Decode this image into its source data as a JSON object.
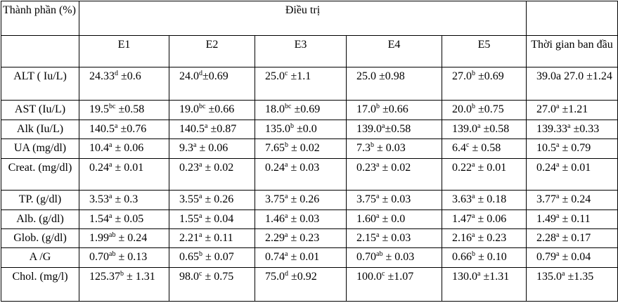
{
  "header": {
    "row_label": "Thành phần (%)",
    "group": "Điều trị",
    "columns": [
      "E1",
      "E2",
      "E3",
      "E4",
      "E5",
      "Thời gian ban đầu"
    ]
  },
  "table": {
    "rows": [
      {
        "label": "ALT ( Iu/L)",
        "cells": [
          {
            "value": "24.33",
            "sup": "d",
            "rest": " ±0.6"
          },
          {
            "value": "24.0",
            "sup": "d",
            "rest": "±0.69"
          },
          {
            "value": "25.0",
            "sup": "c",
            "rest": " ±1.1"
          },
          {
            "value": "25.0 ±0.98"
          },
          {
            "value": "27.0",
            "sup": "b",
            "rest": " ±0.69"
          },
          {
            "value": "39.0a 27.0 ±1.24"
          }
        ]
      },
      {
        "label": "AST (Iu/L)",
        "cells": [
          {
            "value": "19.5",
            "sup": "bc",
            "rest": " ±0.58"
          },
          {
            "value": "19.0",
            "sup": "bc",
            "rest": " ±0.66"
          },
          {
            "value": "18.0",
            "sup": "bc",
            "rest": " ±0.69"
          },
          {
            "value": "17.0",
            "sup": "b",
            "rest": " ±0.66"
          },
          {
            "value": "20.0",
            "sup": "b",
            "rest": " ±0.75"
          },
          {
            "value": "27.0",
            "sup": "a",
            "rest": " ±1.21"
          }
        ]
      },
      {
        "label": "Alk (Iu/L)",
        "cells": [
          {
            "value": "140.5",
            "sup": "a",
            "rest": " ±0.76"
          },
          {
            "value": "140.5",
            "sup": "a",
            "rest": " ±0.87"
          },
          {
            "value": "135.0",
            "sup": "b",
            "rest": " ±0.0"
          },
          {
            "value": "139.0",
            "sup": "a",
            "rest": "±0.58"
          },
          {
            "value": "139.0",
            "sup": "a",
            "rest": " ±0.58"
          },
          {
            "value": "139.33",
            "sup": "a",
            "rest": " ±0.33"
          }
        ]
      },
      {
        "label": "UA (mg/dl)",
        "cells": [
          {
            "value": "10.4",
            "sup": "a",
            "rest": " ± 0.06"
          },
          {
            "value": "9.3",
            "sup": "a",
            "rest": " ± 0.06"
          },
          {
            "value": "7.65",
            "sup": "b",
            "rest": " ± 0.02"
          },
          {
            "value": "7.3",
            "sup": "b",
            "rest": " ± 0.03"
          },
          {
            "value": "6.4",
            "sup": "c",
            "rest": " ± 0.58"
          },
          {
            "value": "10.5",
            "sup": "a",
            "rest": " ± 0.79"
          }
        ]
      },
      {
        "label": "Creat. (mg/dl)",
        "cells": [
          {
            "value": "0.24",
            "sup": "a",
            "rest": " ± 0.01"
          },
          {
            "value": "0.23",
            "sup": "a",
            "rest": " ± 0.02"
          },
          {
            "value": "0.24",
            "sup": "a",
            "rest": " ± 0.03"
          },
          {
            "value": "0.23",
            "sup": "a",
            "rest": " ± 0.02"
          },
          {
            "value": "0.22",
            "sup": "a",
            "rest": " ± 0.01"
          },
          {
            "value": "0.24",
            "sup": "a",
            "rest": " ± 0.01"
          }
        ]
      },
      {
        "label": "TP. (g/dl)",
        "cells": [
          {
            "value": "3.53",
            "sup": "a",
            "rest": " ± 0.3"
          },
          {
            "value": "3.55",
            "sup": "a",
            "rest": " ± 0.26"
          },
          {
            "value": "3.75",
            "sup": "a",
            "rest": " ± 0.26"
          },
          {
            "value": "3.75",
            "sup": "a",
            "rest": " ± 0.03"
          },
          {
            "value": "3.63",
            "sup": "a",
            "rest": " ± 0.18"
          },
          {
            "value": "3.77",
            "sup": "a",
            "rest": " ± 0.24"
          }
        ]
      },
      {
        "label": "Alb. (g/dl)",
        "cells": [
          {
            "value": "1.54",
            "sup": "a",
            "rest": " ± 0.05"
          },
          {
            "value": "1.55",
            "sup": "a",
            "rest": " ± 0.04"
          },
          {
            "value": "1.46",
            "sup": "a",
            "rest": " ± 0.03"
          },
          {
            "value": "1.60",
            "sup": "a",
            "rest": " ± 0.0"
          },
          {
            "value": "1.47",
            "sup": "a",
            "rest": " ± 0.06"
          },
          {
            "value": "1.49",
            "sup": "a",
            "rest": " ± 0.11"
          }
        ]
      },
      {
        "label": "Glob. (g/dl)",
        "cells": [
          {
            "value": "1.99",
            "sup": "ab",
            "rest": " ± 0.24"
          },
          {
            "value": "2.21",
            "sup": "a",
            "rest": " ± 0.11"
          },
          {
            "value": "2.29",
            "sup": "a",
            "rest": " ± 0.23"
          },
          {
            "value": "2.15",
            "sup": "a",
            "rest": " ± 0.03"
          },
          {
            "value": "2.16",
            "sup": "a",
            "rest": " ± 0.23"
          },
          {
            "value": "2.28",
            "sup": "a",
            "rest": " ± 0.17"
          }
        ]
      },
      {
        "label": "A /G",
        "cells": [
          {
            "value": "0.70",
            "sup": "ab",
            "rest": " ± 0.13"
          },
          {
            "value": "0.65",
            "sup": "b",
            "rest": " ± 0.07"
          },
          {
            "value": "0.74",
            "sup": "a",
            "rest": " ± 0.01"
          },
          {
            "value": "0.70",
            "sup": "ab",
            "rest": " ± 0.03"
          },
          {
            "value": "0.66",
            "sup": "b",
            "rest": " ± 0.10"
          },
          {
            "value": "0.79",
            "sup": "a",
            "rest": " ± 0.04"
          }
        ]
      },
      {
        "label": "Chol. (mg/l)",
        "cells": [
          {
            "value": "125.37",
            "sup": "b",
            "rest": " ± 1.31"
          },
          {
            "value": "98.0",
            "sup": "c",
            "rest": " ± 0.75"
          },
          {
            "value": "75.0",
            "sup": "d",
            "rest": " ±0.92"
          },
          {
            "value": "100.0",
            "sup": "c",
            "rest": " ±1.07"
          },
          {
            "value": "130.0",
            "sup": "a",
            "rest": " ±1.31"
          },
          {
            "value": "135.0",
            "sup": "a",
            "rest": " ±1.35"
          }
        ]
      }
    ]
  }
}
